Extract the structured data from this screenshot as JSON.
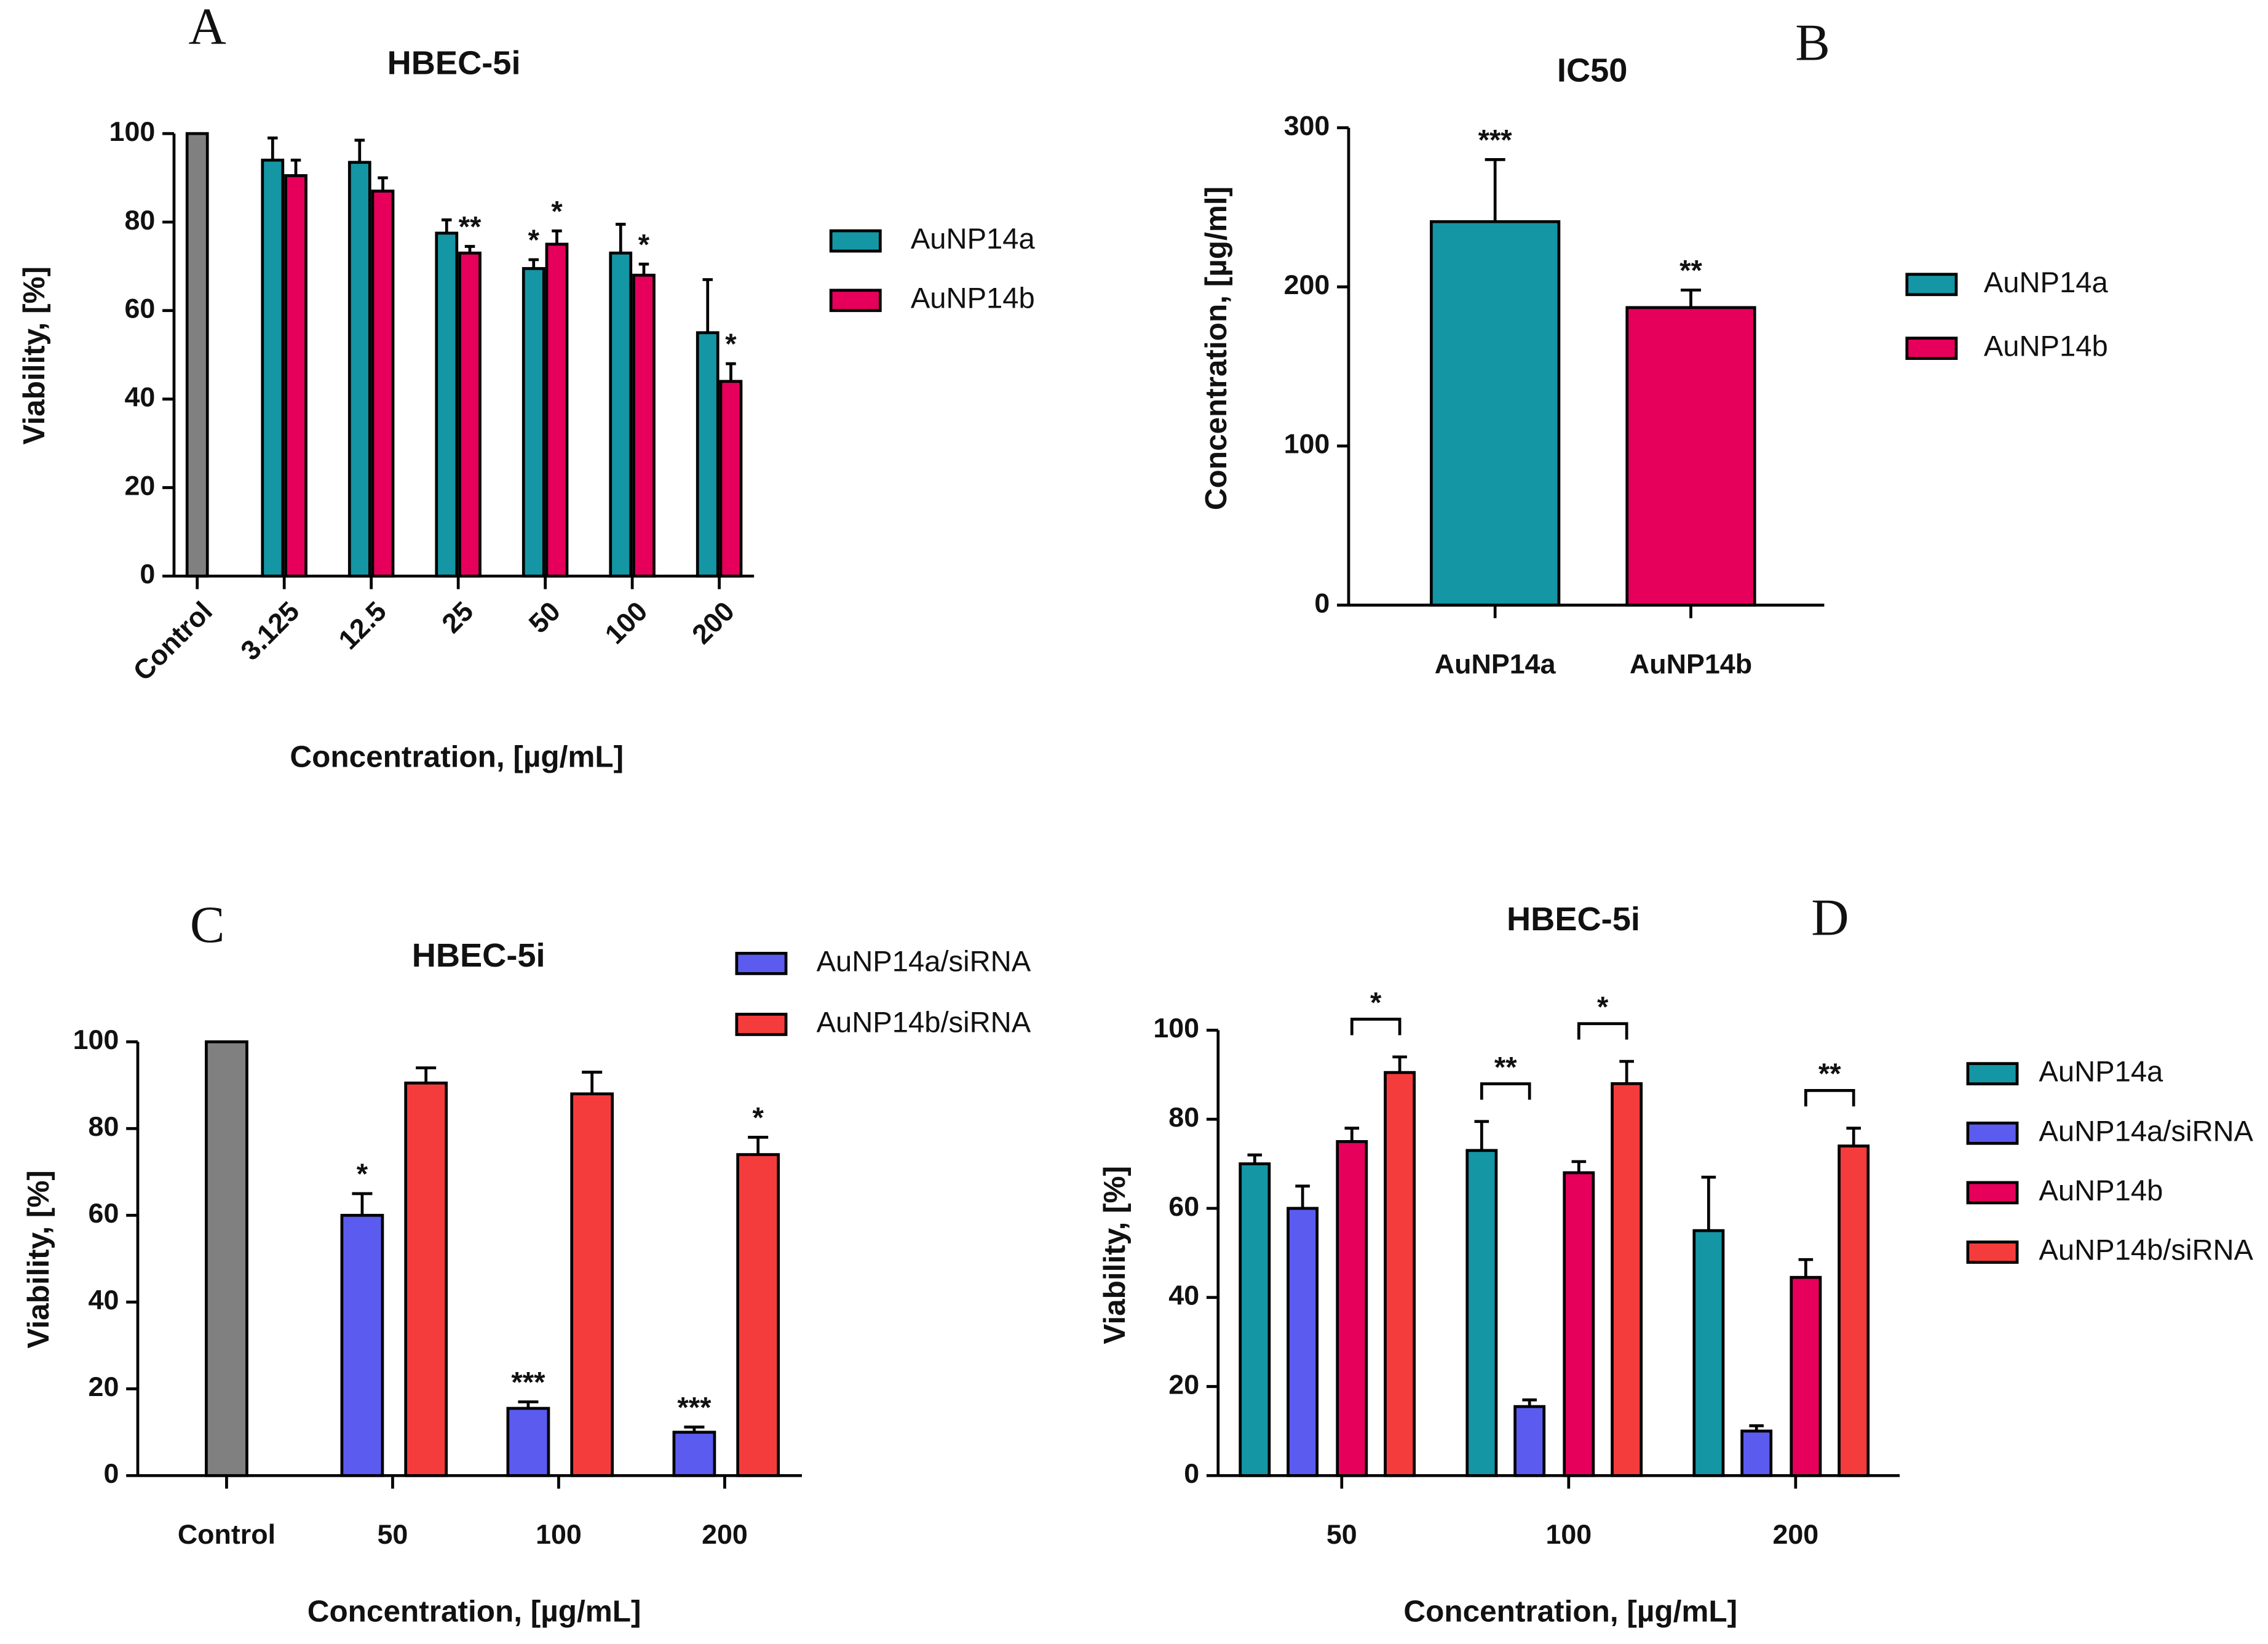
{
  "chart_data": [
    {
      "type": "bar",
      "panel": "A",
      "title": "HBEC-5i",
      "y_label": "Viability, [%]",
      "x_label": "Concentration, [µg/mL]",
      "categories": [
        "Control",
        "3.125",
        "12.5",
        "25",
        "50",
        "100",
        "200"
      ],
      "control_value": 100,
      "control_color": "#808080",
      "series": [
        {
          "name": "AuNP14a",
          "color": "#1496a4",
          "values": [
            null,
            94,
            93.5,
            77.5,
            69.5,
            73,
            55
          ],
          "errors": [
            null,
            5,
            5,
            3,
            2,
            6.5,
            12
          ],
          "significance": [
            null,
            null,
            null,
            null,
            "*",
            null,
            null
          ]
        },
        {
          "name": "AuNP14b",
          "color": "#e6005c",
          "values": [
            null,
            90.5,
            87,
            73,
            75,
            68,
            44
          ],
          "errors": [
            null,
            3.5,
            3,
            1.5,
            3,
            2.5,
            4
          ],
          "significance": [
            null,
            null,
            null,
            "**",
            "*",
            "*",
            "*"
          ]
        }
      ],
      "ylim": [
        0,
        100
      ],
      "yticks": [
        0,
        20,
        40,
        60,
        80,
        100
      ]
    },
    {
      "type": "bar",
      "panel": "B",
      "title": "IC50",
      "y_label": "Concentration, [µg/ml]",
      "categories": [
        "AuNP14a",
        "AuNP14b"
      ],
      "values": [
        241,
        187
      ],
      "errors": [
        39,
        11
      ],
      "significance": [
        "***",
        "**"
      ],
      "colors": [
        "#1496a4",
        "#e6005c"
      ],
      "ylim": [
        0,
        300
      ],
      "yticks": [
        0,
        100,
        200,
        300
      ]
    },
    {
      "type": "bar",
      "panel": "C",
      "title": "HBEC-5i",
      "y_label": "Viability, [%]",
      "x_label": "Concentration, [µg/mL]",
      "categories": [
        "Control",
        "50",
        "100",
        "200"
      ],
      "control_value": 100,
      "control_color": "#808080",
      "series": [
        {
          "name": "AuNP14a/siRNA",
          "color": "#5b5bf0",
          "values": [
            null,
            60,
            15.5,
            10
          ],
          "errors": [
            null,
            5,
            1.5,
            1.2
          ],
          "significance": [
            null,
            "*",
            "***",
            "***"
          ]
        },
        {
          "name": "AuNP14b/siRNA",
          "color": "#f53c3c",
          "values": [
            null,
            90.5,
            88,
            74
          ],
          "errors": [
            null,
            3.5,
            5,
            4
          ],
          "significance": [
            null,
            null,
            null,
            "*"
          ]
        }
      ],
      "ylim": [
        0,
        100
      ],
      "yticks": [
        0,
        20,
        40,
        60,
        80,
        100
      ]
    },
    {
      "type": "bar",
      "panel": "D",
      "title": "HBEC-5i",
      "y_label": "Viability, [%]",
      "x_label": "Concentration, [µg/mL]",
      "categories": [
        "50",
        "100",
        "200"
      ],
      "series": [
        {
          "name": "AuNP14a",
          "color": "#1496a4",
          "values": [
            70,
            73,
            55
          ],
          "errors": [
            2,
            6.5,
            12
          ]
        },
        {
          "name": "AuNP14a/siRNA",
          "color": "#5b5bf0",
          "values": [
            60,
            15.5,
            10
          ],
          "errors": [
            5,
            1.5,
            1.2
          ]
        },
        {
          "name": "AuNP14b",
          "color": "#e6005c",
          "values": [
            75,
            68,
            44.5
          ],
          "errors": [
            3,
            2.5,
            4
          ]
        },
        {
          "name": "AuNP14b/siRNA",
          "color": "#f53c3c",
          "values": [
            90.5,
            88,
            74
          ],
          "errors": [
            3.5,
            5,
            4
          ]
        }
      ],
      "comparisons": [
        {
          "category": 0,
          "series": [
            2,
            3
          ],
          "label": "*"
        },
        {
          "category": 1,
          "series": [
            0,
            1
          ],
          "label": "**"
        },
        {
          "category": 1,
          "series": [
            2,
            3
          ],
          "label": "*"
        },
        {
          "category": 2,
          "series": [
            2,
            3
          ],
          "label": "**"
        }
      ],
      "ylim": [
        0,
        100
      ],
      "yticks": [
        0,
        20,
        40,
        60,
        80,
        100
      ]
    }
  ]
}
